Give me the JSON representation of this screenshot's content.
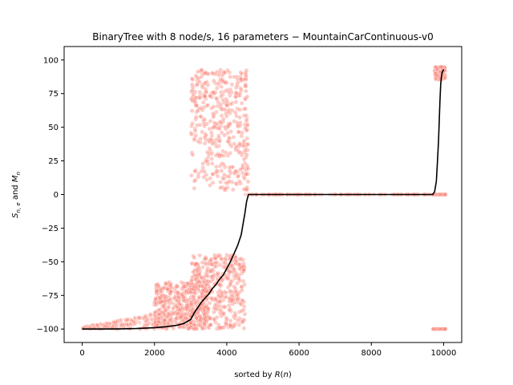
{
  "chart_data": {
    "type": "scatter",
    "title": "BinaryTree with 8 node/s, 16 parameters − MountainCarContinuous-v0",
    "xlabel": "sorted by R(n)",
    "ylabel": "S_{n,e} and M_n",
    "xlim": [
      -500,
      10500
    ],
    "ylim": [
      -110,
      110
    ],
    "x_ticks": [
      0,
      2000,
      4000,
      6000,
      8000,
      10000
    ],
    "y_ticks": [
      -100,
      -75,
      -50,
      -25,
      0,
      25,
      50,
      75,
      100
    ],
    "grid": false,
    "legend": "none",
    "series": [
      {
        "kind": "scatter",
        "color": "#fa8072",
        "clusters": [
          {
            "x": [
              0,
              3000
            ],
            "y_base": -100,
            "y_spread": 5
          },
          {
            "x": [
              2000,
              3500
            ],
            "y": [
              -100,
              -65
            ]
          },
          {
            "x": [
              3000,
              4500
            ],
            "y": [
              -100,
              -45
            ]
          },
          {
            "x": [
              3000,
              4600
            ],
            "y": [
              3,
              93
            ]
          },
          {
            "x": [
              4500,
              9750
            ],
            "y_base": 0
          },
          {
            "x": [
              9750,
              10050
            ],
            "y": [
              85,
              95
            ]
          },
          {
            "x": [
              9700,
              10050
            ],
            "y_values": [
              0,
              -100
            ]
          }
        ]
      },
      {
        "kind": "line",
        "color": "#000000",
        "x": [
          0,
          500,
          1000,
          1500,
          2000,
          2300,
          2600,
          2800,
          3000,
          3100,
          3200,
          3300,
          3400,
          3500,
          3600,
          3700,
          3800,
          3900,
          4000,
          4100,
          4200,
          4300,
          4400,
          4450,
          4500,
          4550,
          4600,
          5000,
          6000,
          7000,
          8000,
          9000,
          9700,
          9750,
          9800,
          9830,
          9860,
          9880,
          9900,
          9920,
          9950,
          10000
        ],
        "y": [
          -100,
          -100,
          -99.9,
          -99.6,
          -99,
          -98.3,
          -97.3,
          -96,
          -93,
          -88,
          -84,
          -80,
          -77,
          -74,
          -70,
          -67,
          -63,
          -60,
          -55,
          -50,
          -44,
          -38,
          -30,
          -22,
          -14,
          -5,
          0,
          0,
          0,
          0,
          0,
          0,
          0,
          2,
          10,
          25,
          40,
          55,
          70,
          82,
          90,
          93
        ]
      }
    ]
  }
}
